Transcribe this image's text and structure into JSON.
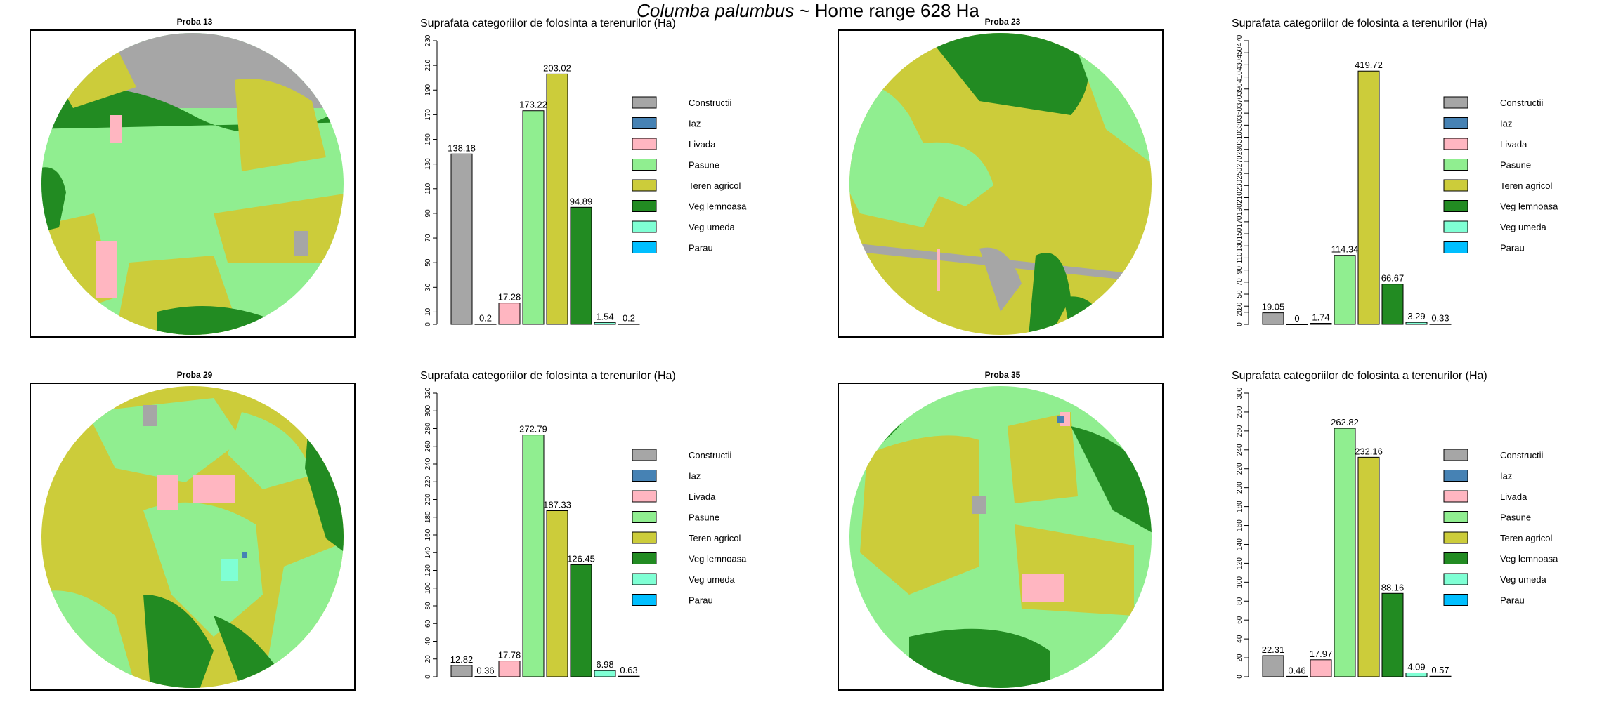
{
  "page": {
    "species": "Columba palumbus",
    "title_rest": " ~ Home range 628  Ha"
  },
  "colors": {
    "Constructii": "#a6a6a6",
    "Iaz": "#4682b4",
    "Livada": "#ffb6c1",
    "Pasune": "#90ee90",
    "Teren agricol": "#cccc3a",
    "Veg lemnoasa": "#228b22",
    "Veg umeda": "#7fffd4",
    "Parau": "#00bfff"
  },
  "chart_data": [
    {
      "type": "bar",
      "map_title": "Proba 13",
      "title": "Suprafata categoriilor de folosinta a terenurilor (Ha)",
      "categories": [
        "Constructii",
        "Iaz",
        "Livada",
        "Pasune",
        "Teren agricol",
        "Veg lemnoasa",
        "Veg umeda",
        "Parau"
      ],
      "values": [
        138.18,
        0.2,
        17.28,
        173.22,
        203.02,
        94.89,
        1.54,
        0.2
      ],
      "value_labels": [
        "138.18",
        "0.2",
        "17.28",
        "173.22",
        "203.02",
        "94.89",
        "1.54",
        "0.2"
      ],
      "ylim": [
        0,
        230
      ],
      "yticks": [
        0,
        10,
        30,
        50,
        70,
        90,
        110,
        130,
        150,
        170,
        190,
        210,
        230
      ],
      "legend": [
        "Constructii",
        "Iaz",
        "Livada",
        "Pasune",
        "Teren agricol",
        "Veg lemnoasa",
        "Veg umeda",
        "Parau"
      ],
      "legend_position": "right"
    },
    {
      "type": "bar",
      "map_title": "Proba 23",
      "title": "Suprafata categoriilor de folosinta a terenurilor (Ha)",
      "categories": [
        "Constructii",
        "Iaz",
        "Livada",
        "Pasune",
        "Teren agricol",
        "Veg lemnoasa",
        "Veg umeda",
        "Parau"
      ],
      "values": [
        19.05,
        0,
        1.74,
        114.34,
        419.72,
        66.67,
        3.29,
        0.33
      ],
      "value_labels": [
        "19.05",
        "0",
        "1.74",
        "114.34",
        "419.72",
        "66.67",
        "3.29",
        "0.33"
      ],
      "ylim": [
        0,
        470
      ],
      "yticks": [
        0,
        20,
        30,
        50,
        70,
        90,
        110,
        130,
        150,
        170,
        190,
        210,
        230,
        250,
        270,
        290,
        310,
        330,
        350,
        370,
        390,
        410,
        430,
        450,
        470
      ],
      "legend": [
        "Constructii",
        "Iaz",
        "Livada",
        "Pasune",
        "Teren agricol",
        "Veg lemnoasa",
        "Veg umeda",
        "Parau"
      ],
      "legend_position": "right"
    },
    {
      "type": "bar",
      "map_title": "Proba 29",
      "title": "Suprafata categoriilor de folosinta a terenurilor (Ha)",
      "categories": [
        "Constructii",
        "Iaz",
        "Livada",
        "Pasune",
        "Teren agricol",
        "Veg lemnoasa",
        "Veg umeda",
        "Parau"
      ],
      "values": [
        12.82,
        0.36,
        17.78,
        272.79,
        187.33,
        126.45,
        6.98,
        0.63
      ],
      "value_labels": [
        "12.82",
        "0.36",
        "17.78",
        "272.79",
        "187.33",
        "126.45",
        "6.98",
        "0.63"
      ],
      "ylim": [
        0,
        320
      ],
      "yticks": [
        0,
        20,
        40,
        60,
        80,
        100,
        120,
        140,
        160,
        180,
        200,
        220,
        240,
        260,
        280,
        300,
        320
      ],
      "legend": [
        "Constructii",
        "Iaz",
        "Livada",
        "Pasune",
        "Teren agricol",
        "Veg lemnoasa",
        "Veg umeda",
        "Parau"
      ],
      "legend_position": "right"
    },
    {
      "type": "bar",
      "map_title": "Proba 35",
      "title": "Suprafata categoriilor de folosinta a terenurilor (Ha)",
      "categories": [
        "Constructii",
        "Iaz",
        "Livada",
        "Pasune",
        "Teren agricol",
        "Veg lemnoasa",
        "Veg umeda",
        "Parau"
      ],
      "values": [
        22.31,
        0.46,
        17.97,
        262.82,
        232.16,
        88.16,
        4.09,
        0.57
      ],
      "value_labels": [
        "22.31",
        "0.46",
        "17.97",
        "262.82",
        "232.16",
        "88.16",
        "4.09",
        "0.57"
      ],
      "ylim": [
        0,
        300
      ],
      "yticks": [
        0,
        20,
        40,
        60,
        80,
        100,
        120,
        140,
        160,
        180,
        200,
        220,
        240,
        260,
        280,
        300
      ],
      "legend": [
        "Constructii",
        "Iaz",
        "Livada",
        "Pasune",
        "Teren agricol",
        "Veg lemnoasa",
        "Veg umeda",
        "Parau"
      ],
      "legend_position": "right"
    }
  ]
}
